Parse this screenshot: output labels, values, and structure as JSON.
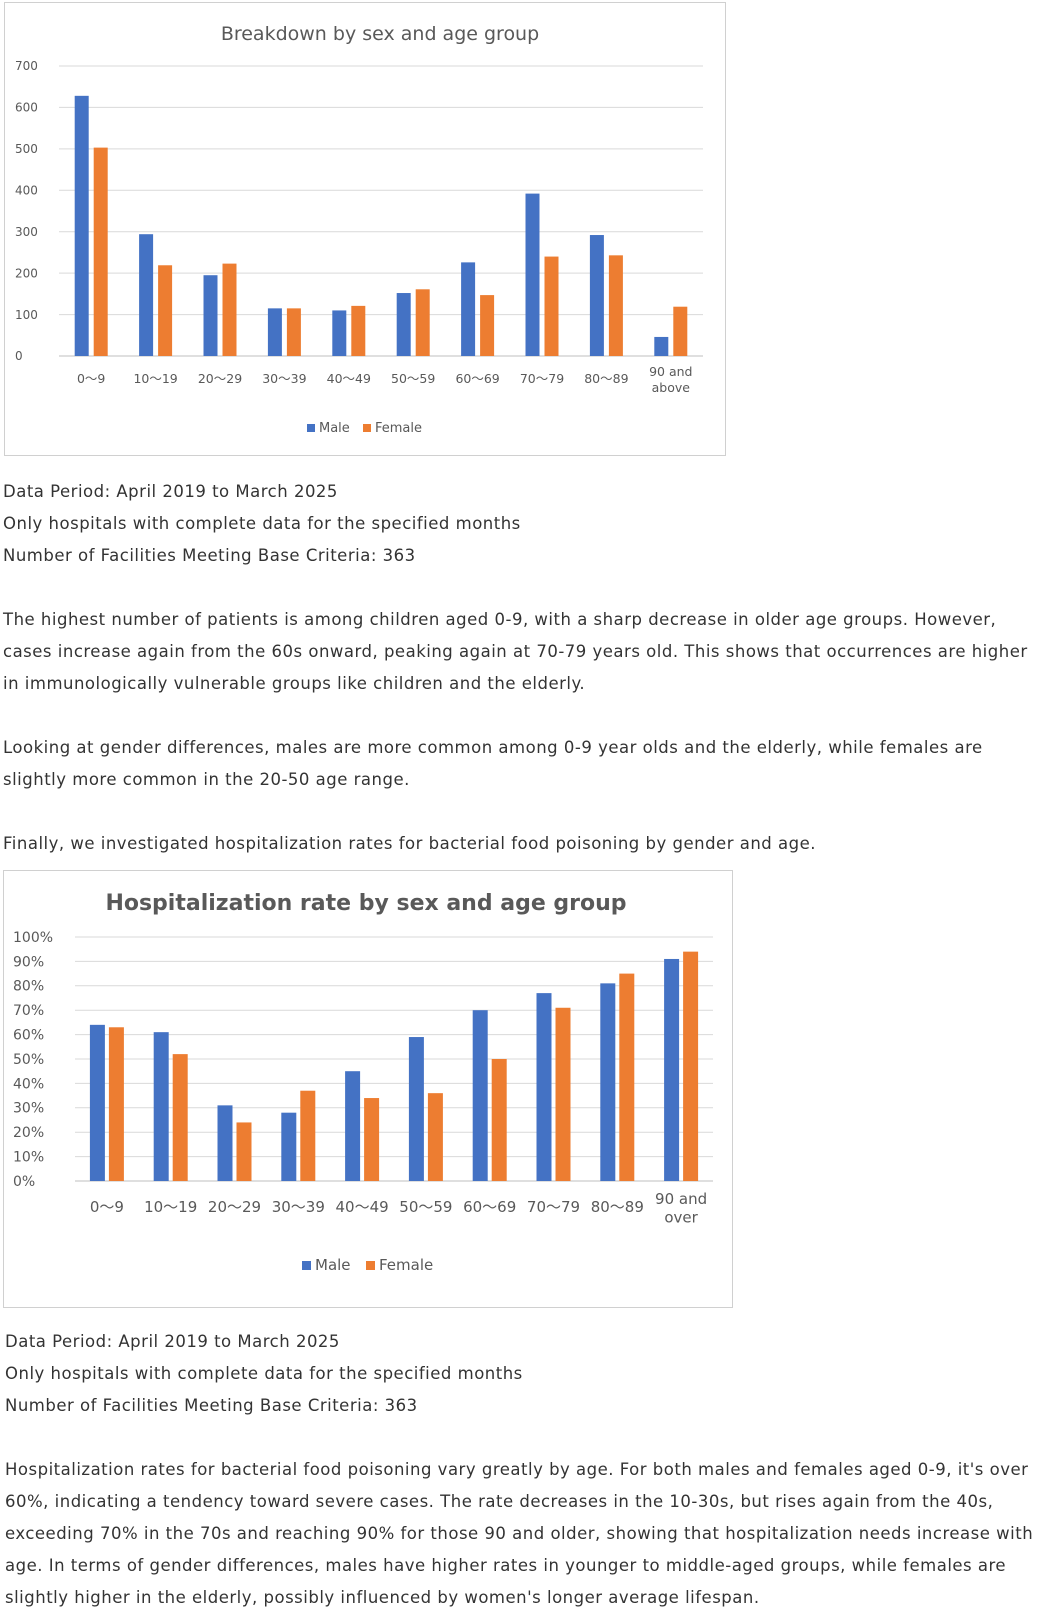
{
  "chart_data": [
    {
      "type": "bar",
      "title": "Breakdown by sex and age group",
      "categories": [
        "0～9",
        "10～19",
        "20～29",
        "30～39",
        "40～49",
        "50～59",
        "60～69",
        "70～79",
        "80～89",
        "90 and above"
      ],
      "series": [
        {
          "name": "Male",
          "color": "#4472c4",
          "values": [
            628,
            294,
            195,
            115,
            110,
            152,
            226,
            392,
            292,
            46
          ]
        },
        {
          "name": "Female",
          "color": "#ed7d31",
          "values": [
            503,
            219,
            223,
            115,
            121,
            161,
            147,
            240,
            243,
            119
          ]
        }
      ],
      "ylim": [
        0,
        700
      ],
      "yticks": [
        "0",
        "100",
        "200",
        "300",
        "400",
        "500",
        "600",
        "700"
      ],
      "grid": true,
      "legend": "bottom",
      "xlabel": "",
      "ylabel": ""
    },
    {
      "type": "bar",
      "title": "Hospitalization rate by sex and age group",
      "categories": [
        "0～9",
        "10～19",
        "20～29",
        "30～39",
        "40～49",
        "50～59",
        "60～69",
        "70～79",
        "80～89",
        "90 and over"
      ],
      "series": [
        {
          "name": "Male",
          "color": "#4472c4",
          "values": [
            64,
            61,
            31,
            28,
            45,
            59,
            70,
            77,
            81,
            91
          ]
        },
        {
          "name": "Female",
          "color": "#ed7d31",
          "values": [
            63,
            52,
            24,
            37,
            34,
            36,
            50,
            71,
            85,
            94
          ]
        }
      ],
      "ylim": [
        0,
        100
      ],
      "yticks": [
        "0%",
        "10%",
        "20%",
        "30%",
        "40%",
        "50%",
        "60%",
        "70%",
        "80%",
        "90%",
        "100%"
      ],
      "grid": true,
      "legend": "bottom",
      "xlabel": "",
      "ylabel": ""
    }
  ],
  "notes1": {
    "period": "Data Period: April 2019 to March 2025",
    "hospitals": "Only hospitals with complete data for the specified months",
    "facilities": "Number of Facilities Meeting Base Criteria: 363"
  },
  "paragraphs1": [
    "The highest number of patients is among children aged 0-9, with a sharp decrease in older age groups. However, cases increase again from the 60s onward, peaking again at 70-79 years old. This shows that occurrences are higher in immunologically vulnerable groups like children and the elderly.",
    "Looking at gender differences, males are more common among 0-9 year olds and the elderly, while females are slightly more common in the 20-50 age range.",
    "Finally, we investigated hospitalization rates for bacterial food poisoning by gender and age."
  ],
  "notes2": {
    "period": "Data Period: April 2019 to March 2025",
    "hospitals": "Only hospitals with complete data for the specified months",
    "facilities": "Number of Facilities Meeting Base Criteria: 363"
  },
  "paragraphs2": [
    "Hospitalization rates for bacterial food poisoning vary greatly by age. For both males and females aged 0-9, it's over 60%, indicating a tendency toward severe cases. The rate decreases in the 10-30s, but rises again from the 40s, exceeding 70% in the 70s and reaching 90% for those 90 and older, showing that hospitalization needs increase with age. In terms of gender differences, males have higher rates in younger to middle-aged groups, while females are slightly higher in the elderly, possibly influenced by women's longer average lifespan."
  ]
}
